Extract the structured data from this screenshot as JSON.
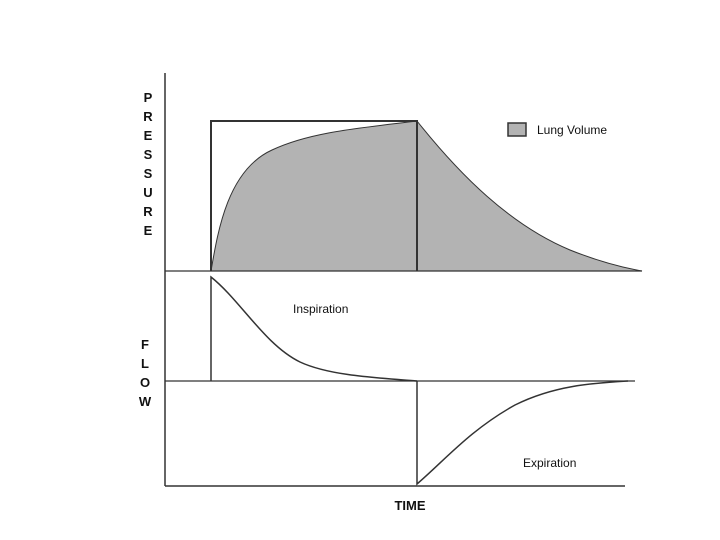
{
  "chart_data": {
    "type": "line",
    "xlabel": "TIME",
    "panels": [
      {
        "ylabel": "PRESSURE",
        "legend": {
          "label": "Lung Volume",
          "placement": "top-right"
        }
      },
      {
        "ylabel": "FLOW",
        "annotations": [
          "Inspiration",
          "Expiration"
        ]
      }
    ]
  },
  "colors": {
    "line": "#333333",
    "volume_fill": "#b3b3b3"
  }
}
